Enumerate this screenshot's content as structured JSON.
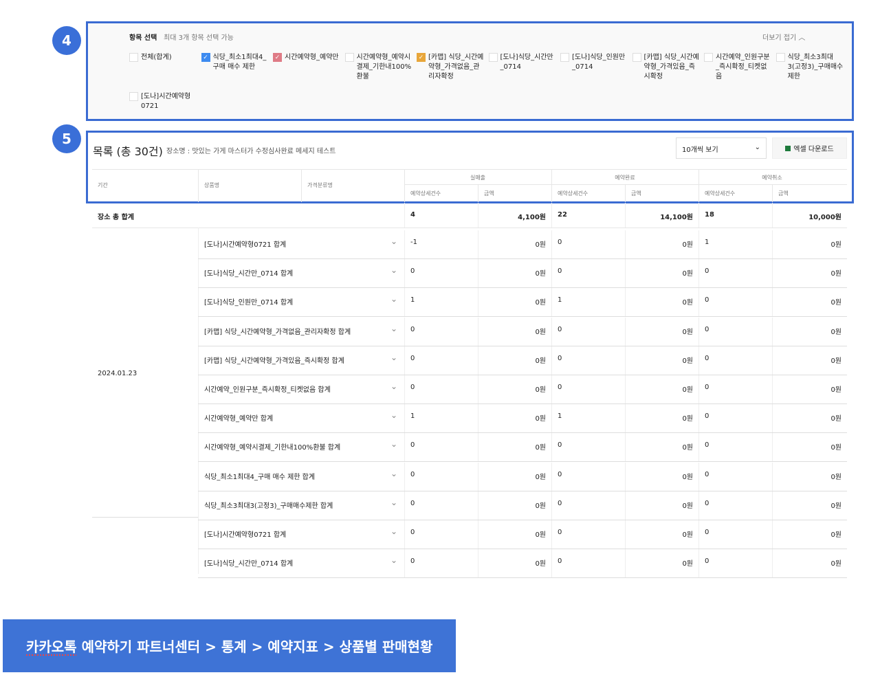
{
  "annotations": [
    "4",
    "5"
  ],
  "filter": {
    "title": "항목 선택",
    "subtitle": "최대 3개 항목 선택 가능",
    "collapse_label": "더보기 접기",
    "collapse_icon": "chevron-up-icon",
    "options": [
      {
        "label": "전체(합계)",
        "checked": false,
        "color": ""
      },
      {
        "label": "식당_최소1최대4_구매 매수 제한",
        "checked": true,
        "color": "#3d8bf0"
      },
      {
        "label": "시간예약형_예약만",
        "checked": true,
        "color": "#df7b86"
      },
      {
        "label": "시간예약형_예약시결제_기한내100%환불",
        "checked": false,
        "color": ""
      },
      {
        "label": "[카맵] 식당_시간예약형_가격없음_관리자확정",
        "checked": true,
        "color": "#e8a63a"
      },
      {
        "label": "[도나]식당_시간만_0714",
        "checked": false,
        "color": ""
      },
      {
        "label": "[도나]식당_인원만_0714",
        "checked": false,
        "color": ""
      },
      {
        "label": "[카맵] 식당_시간예약형_가격있음_즉시확정",
        "checked": false,
        "color": ""
      },
      {
        "label": "시간예약_인원구분_즉시확정_티켓없음",
        "checked": false,
        "color": ""
      },
      {
        "label": "식당_최소3최대3(고정3)_구매매수제한",
        "checked": false,
        "color": ""
      },
      {
        "label": "[도나]시간예약형0721",
        "checked": false,
        "color": ""
      }
    ]
  },
  "list": {
    "title": "목록 (총 30건)",
    "subtitle": "장소명 : 맛있는 가게 마스터가 수정심사완료 메세지 테스트",
    "page_size": "10개씩 보기",
    "excel_label": "엑셀 다운로드"
  },
  "table": {
    "headers": {
      "period": "기간",
      "product": "상품명",
      "price_class": "가격분류명",
      "groups": [
        "실매출",
        "예약완료",
        "예약취소"
      ],
      "sub": [
        "예약상세건수",
        "금액"
      ]
    },
    "total": {
      "label": "장소 총 합계",
      "values": [
        "4",
        "4,100원",
        "22",
        "14,100원",
        "18",
        "10,000원"
      ]
    },
    "date": "2024.01.23",
    "rows": [
      {
        "name": "[도나]시간예약형0721 합계",
        "values": [
          "-1",
          "0원",
          "0",
          "0원",
          "1",
          "0원"
        ]
      },
      {
        "name": "[도나]식당_시간만_0714 합계",
        "values": [
          "0",
          "0원",
          "0",
          "0원",
          "0",
          "0원"
        ]
      },
      {
        "name": "[도나]식당_인원만_0714 합계",
        "values": [
          "1",
          "0원",
          "1",
          "0원",
          "0",
          "0원"
        ]
      },
      {
        "name": "[카맵] 식당_시간예약형_가격없음_관리자확정 합계",
        "values": [
          "0",
          "0원",
          "0",
          "0원",
          "0",
          "0원"
        ]
      },
      {
        "name": "[카맵] 식당_시간예약형_가격있음_즉시확정 합계",
        "values": [
          "0",
          "0원",
          "0",
          "0원",
          "0",
          "0원"
        ]
      },
      {
        "name": "시간예약_인원구분_즉시확정_티켓없음 합계",
        "values": [
          "0",
          "0원",
          "0",
          "0원",
          "0",
          "0원"
        ]
      },
      {
        "name": "시간예약형_예약만 합계",
        "values": [
          "1",
          "0원",
          "1",
          "0원",
          "0",
          "0원"
        ]
      },
      {
        "name": "시간예약형_예약시결제_기한내100%환불 합계",
        "values": [
          "0",
          "0원",
          "0",
          "0원",
          "0",
          "0원"
        ]
      },
      {
        "name": "식당_최소1최대4_구매 매수 제한 합계",
        "values": [
          "0",
          "0원",
          "0",
          "0원",
          "0",
          "0원"
        ]
      },
      {
        "name": "식당_최소3최대3(고정3)_구매매수제한 합계",
        "values": [
          "0",
          "0원",
          "0",
          "0원",
          "0",
          "0원"
        ]
      },
      {
        "name": "[도나]시간예약형0721 합계",
        "values": [
          "0",
          "0원",
          "0",
          "0원",
          "0",
          "0원"
        ]
      },
      {
        "name": "[도나]식당_시간만_0714 합계",
        "values": [
          "0",
          "0원",
          "0",
          "0원",
          "0",
          "0원"
        ]
      }
    ]
  },
  "banner": {
    "underlined": "카카오톡",
    "rest": " 예약하기 파트너센터 > 통계 > 예약지표 > 상품별 판매현황"
  }
}
